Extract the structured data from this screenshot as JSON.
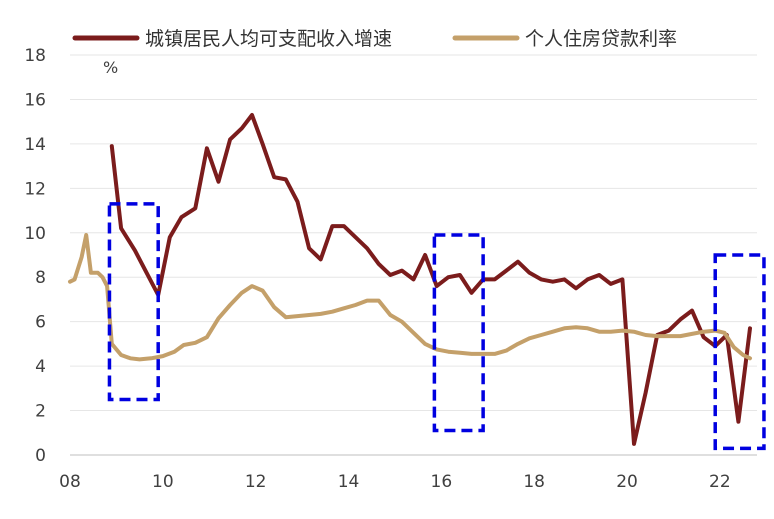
{
  "chart_data": {
    "type": "line",
    "unit_label": "%",
    "ylim": [
      0,
      18
    ],
    "y_ticks": [
      "0",
      "2",
      "4",
      "6",
      "8",
      "10",
      "12",
      "14",
      "16",
      "18"
    ],
    "xlim": [
      2008,
      2022.8
    ],
    "x_ticks": [
      {
        "value": 2008,
        "label": "08"
      },
      {
        "value": 2010,
        "label": "10"
      },
      {
        "value": 2012,
        "label": "12"
      },
      {
        "value": 2014,
        "label": "14"
      },
      {
        "value": 2016,
        "label": "16"
      },
      {
        "value": 2018,
        "label": "18"
      },
      {
        "value": 2020,
        "label": "20"
      },
      {
        "value": 2022,
        "label": "22"
      }
    ],
    "grid": "horizontal",
    "legend_position": "top",
    "series": [
      {
        "name": "城镇居民人均可支配收入增速",
        "color": "#7b1c1c",
        "points": [
          [
            2008.9,
            13.9
          ],
          [
            2009.1,
            10.2
          ],
          [
            2009.4,
            9.2
          ],
          [
            2009.65,
            8.2
          ],
          [
            2009.9,
            7.2
          ],
          [
            2010.15,
            9.8
          ],
          [
            2010.4,
            10.7
          ],
          [
            2010.7,
            11.1
          ],
          [
            2010.95,
            13.8
          ],
          [
            2011.2,
            12.3
          ],
          [
            2011.45,
            14.2
          ],
          [
            2011.7,
            14.7
          ],
          [
            2011.92,
            15.3
          ],
          [
            2012.15,
            14.0
          ],
          [
            2012.4,
            12.5
          ],
          [
            2012.65,
            12.4
          ],
          [
            2012.9,
            11.4
          ],
          [
            2013.15,
            9.3
          ],
          [
            2013.4,
            8.8
          ],
          [
            2013.65,
            10.3
          ],
          [
            2013.9,
            10.3
          ],
          [
            2014.15,
            9.8
          ],
          [
            2014.4,
            9.3
          ],
          [
            2014.65,
            8.6
          ],
          [
            2014.9,
            8.1
          ],
          [
            2015.15,
            8.3
          ],
          [
            2015.4,
            7.9
          ],
          [
            2015.65,
            9.0
          ],
          [
            2015.9,
            7.6
          ],
          [
            2016.15,
            8.0
          ],
          [
            2016.4,
            8.1
          ],
          [
            2016.65,
            7.3
          ],
          [
            2016.9,
            7.9
          ],
          [
            2017.15,
            7.9
          ],
          [
            2017.4,
            8.3
          ],
          [
            2017.65,
            8.7
          ],
          [
            2017.9,
            8.2
          ],
          [
            2018.15,
            7.9
          ],
          [
            2018.4,
            7.8
          ],
          [
            2018.65,
            7.9
          ],
          [
            2018.9,
            7.5
          ],
          [
            2019.15,
            7.9
          ],
          [
            2019.4,
            8.1
          ],
          [
            2019.65,
            7.7
          ],
          [
            2019.9,
            7.9
          ],
          [
            2020.15,
            0.5
          ],
          [
            2020.4,
            2.8
          ],
          [
            2020.65,
            5.4
          ],
          [
            2020.9,
            5.6
          ],
          [
            2021.15,
            6.1
          ],
          [
            2021.4,
            6.5
          ],
          [
            2021.65,
            5.3
          ],
          [
            2021.9,
            4.9
          ],
          [
            2022.15,
            5.4
          ],
          [
            2022.4,
            1.5
          ],
          [
            2022.65,
            5.7
          ]
        ]
      },
      {
        "name": "个人住房贷款利率",
        "color": "#c4a06a",
        "points": [
          [
            2008.0,
            7.8
          ],
          [
            2008.1,
            7.9
          ],
          [
            2008.25,
            8.9
          ],
          [
            2008.35,
            9.9
          ],
          [
            2008.45,
            8.2
          ],
          [
            2008.6,
            8.2
          ],
          [
            2008.7,
            8.0
          ],
          [
            2008.8,
            7.6
          ],
          [
            2008.9,
            5.0
          ],
          [
            2009.1,
            4.5
          ],
          [
            2009.3,
            4.35
          ],
          [
            2009.5,
            4.3
          ],
          [
            2009.75,
            4.35
          ],
          [
            2010.0,
            4.45
          ],
          [
            2010.25,
            4.65
          ],
          [
            2010.45,
            4.95
          ],
          [
            2010.7,
            5.05
          ],
          [
            2010.95,
            5.3
          ],
          [
            2011.2,
            6.15
          ],
          [
            2011.45,
            6.75
          ],
          [
            2011.7,
            7.3
          ],
          [
            2011.92,
            7.6
          ],
          [
            2012.15,
            7.4
          ],
          [
            2012.4,
            6.65
          ],
          [
            2012.65,
            6.2
          ],
          [
            2012.9,
            6.25
          ],
          [
            2013.15,
            6.3
          ],
          [
            2013.4,
            6.35
          ],
          [
            2013.65,
            6.45
          ],
          [
            2013.9,
            6.6
          ],
          [
            2014.15,
            6.75
          ],
          [
            2014.4,
            6.95
          ],
          [
            2014.65,
            6.95
          ],
          [
            2014.9,
            6.3
          ],
          [
            2015.15,
            6.0
          ],
          [
            2015.4,
            5.5
          ],
          [
            2015.65,
            5.0
          ],
          [
            2015.9,
            4.75
          ],
          [
            2016.15,
            4.65
          ],
          [
            2016.4,
            4.6
          ],
          [
            2016.65,
            4.55
          ],
          [
            2016.9,
            4.55
          ],
          [
            2017.15,
            4.55
          ],
          [
            2017.4,
            4.7
          ],
          [
            2017.65,
            5.0
          ],
          [
            2017.9,
            5.25
          ],
          [
            2018.15,
            5.4
          ],
          [
            2018.4,
            5.55
          ],
          [
            2018.65,
            5.7
          ],
          [
            2018.9,
            5.75
          ],
          [
            2019.15,
            5.7
          ],
          [
            2019.4,
            5.55
          ],
          [
            2019.65,
            5.55
          ],
          [
            2019.9,
            5.6
          ],
          [
            2020.15,
            5.55
          ],
          [
            2020.4,
            5.4
          ],
          [
            2020.65,
            5.35
          ],
          [
            2020.9,
            5.35
          ],
          [
            2021.15,
            5.35
          ],
          [
            2021.4,
            5.45
          ],
          [
            2021.65,
            5.55
          ],
          [
            2021.9,
            5.6
          ],
          [
            2022.1,
            5.5
          ],
          [
            2022.3,
            4.85
          ],
          [
            2022.5,
            4.5
          ],
          [
            2022.65,
            4.35
          ]
        ]
      }
    ],
    "annotations": [
      {
        "kind": "dashed-box",
        "color": "#0000e0",
        "x0": 2008.85,
        "x1": 2009.9,
        "y0": 2.5,
        "y1": 11.3
      },
      {
        "kind": "dashed-box",
        "color": "#0000e0",
        "x0": 2015.85,
        "x1": 2016.9,
        "y0": 1.1,
        "y1": 9.9
      },
      {
        "kind": "dashed-box",
        "color": "#0000e0",
        "x0": 2021.9,
        "x1": 2022.95,
        "y0": 0.3,
        "y1": 9.0
      }
    ]
  }
}
